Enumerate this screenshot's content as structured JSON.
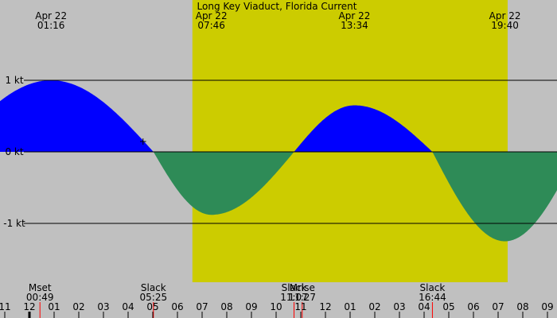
{
  "chart_data": {
    "type": "area",
    "title": "Long Key Viaduct, Florida Current",
    "ylabel": "",
    "xlabel": "",
    "x_range_hours": [
      23.0,
      33.5
    ],
    "ylim": [
      -1.85,
      1.6
    ],
    "y_ticks": [
      {
        "value": 1,
        "label": "1 kt"
      },
      {
        "value": 0,
        "label": "0 kt"
      },
      {
        "value": -1,
        "label": "-1 kt"
      }
    ],
    "daylight": {
      "start": 7.0,
      "end": 19.78
    },
    "extremes": [
      {
        "x": 1.27,
        "date": "Apr 22",
        "time": "01:16",
        "value": 1.0
      },
      {
        "x": 7.77,
        "date": "Apr 22",
        "time": "07:46",
        "value": -0.88
      },
      {
        "x": 13.57,
        "date": "Apr 22",
        "time": "13:34",
        "value": 0.65
      },
      {
        "x": 19.67,
        "date": "Apr 22",
        "time": "19:40",
        "value": -1.25
      }
    ],
    "slacks": [
      {
        "x": 5.42,
        "label": "Slack",
        "time": "05:25"
      },
      {
        "x": 11.12,
        "label": "Slack",
        "time": "11:07"
      },
      {
        "x": 16.73,
        "label": "Slack",
        "time": "16:44"
      }
    ],
    "moon_events": [
      {
        "x": 0.82,
        "label": "Mset",
        "time": "00:49"
      },
      {
        "x": 11.45,
        "label": "Mrise",
        "time": "11:27"
      }
    ],
    "hour_ticks": [
      "11",
      "12",
      "01",
      "02",
      "03",
      "04",
      "05",
      "06",
      "07",
      "08",
      "09",
      "10",
      "11",
      "12",
      "01",
      "02",
      "03",
      "04",
      "05",
      "06",
      "07",
      "08",
      "09"
    ],
    "marker": {
      "x": 5.0,
      "symbol": "+"
    },
    "colors": {
      "background": "#c0c0c0",
      "daylight": "#cccc00",
      "flood": "#0000ff",
      "ebb": "#2e8b57",
      "gridline": "#000000",
      "event_tick": "#ff0000"
    }
  }
}
